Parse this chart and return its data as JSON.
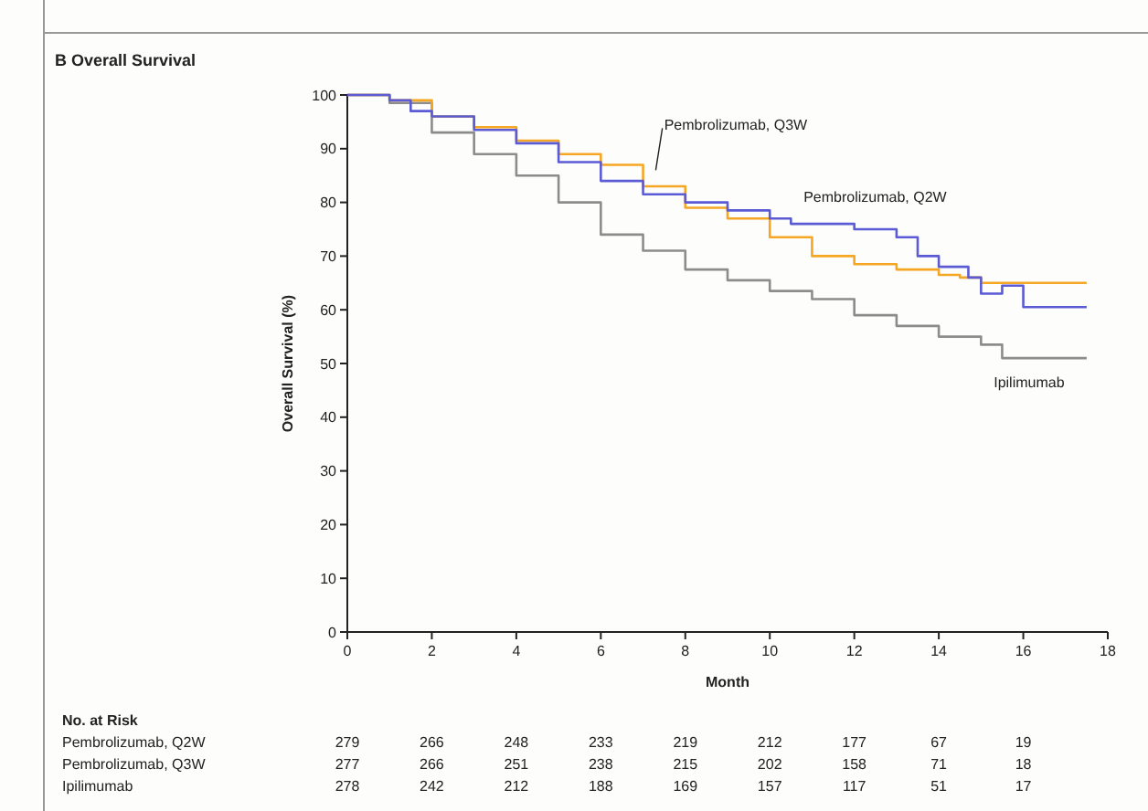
{
  "chart_data": {
    "type": "step",
    "title": "B  Overall Survival",
    "xlabel": "Month",
    "ylabel": "Overall Survival (%)",
    "xlim": [
      0,
      18
    ],
    "xticks": [
      0,
      2,
      4,
      6,
      8,
      10,
      12,
      14,
      16,
      18
    ],
    "ylim": [
      0,
      100
    ],
    "yticks": [
      0,
      10,
      20,
      30,
      40,
      50,
      60,
      70,
      80,
      90,
      100
    ],
    "series": [
      {
        "name": "Pembrolizumab, Q2W",
        "color": "#5b5bd6",
        "x": [
          0,
          0.7,
          1,
          1.5,
          2,
          3,
          4,
          5,
          6,
          7,
          8,
          9,
          10,
          10.5,
          11,
          12,
          13,
          13.5,
          14,
          14.7,
          15,
          15.5,
          16,
          17.5
        ],
        "values": [
          100,
          100,
          99,
          97,
          96,
          93.5,
          91,
          87.5,
          84,
          81.5,
          80,
          78.5,
          77,
          76,
          76,
          75,
          73.5,
          70,
          68,
          66,
          63,
          64.5,
          60.5,
          60.5
        ]
      },
      {
        "name": "Pembrolizumab, Q3W",
        "color": "#f5a623",
        "x": [
          0,
          1,
          2,
          3,
          4,
          5,
          6,
          7,
          8,
          9,
          10,
          11,
          12,
          13,
          14,
          14.5,
          15,
          17.5
        ],
        "values": [
          100,
          99,
          96,
          94,
          91.5,
          89,
          87,
          83,
          79,
          77,
          73.5,
          70,
          68.5,
          67.5,
          66.5,
          66,
          65,
          65
        ]
      },
      {
        "name": "Ipilimumab",
        "color": "#8c8c8c",
        "x": [
          0,
          1,
          2,
          3,
          4,
          5,
          6,
          7,
          8,
          9,
          10,
          11,
          12,
          13,
          14,
          15,
          15.5,
          17.5
        ],
        "values": [
          100,
          98.5,
          93,
          89,
          85,
          80,
          74,
          71,
          67.5,
          65.5,
          63.5,
          62,
          59,
          57,
          55,
          53.5,
          51,
          51
        ]
      }
    ],
    "annotations": [
      "No. at Risk",
      "Pembrolizumab, Q2W",
      "279",
      "266",
      "248",
      "233",
      "219",
      "212",
      "177",
      "67",
      "19",
      "Pembrolizumab, Q3W",
      "277",
      "266",
      "251",
      "238",
      "215",
      "202",
      "158",
      "71",
      "18",
      "Ipilimumab",
      "278",
      "242",
      "212",
      "188",
      "169",
      "157",
      "117",
      "51",
      "17"
    ]
  }
}
